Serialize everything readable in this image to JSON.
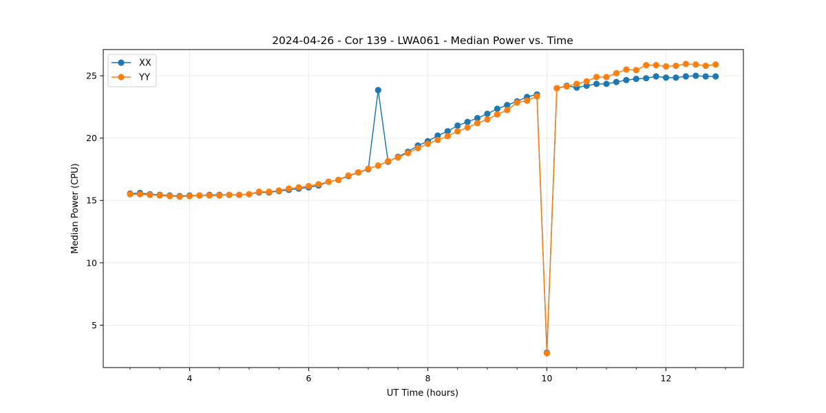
{
  "chart_data": {
    "type": "line",
    "title": "2024-04-26 - Cor 139 - LWA061 - Median Power vs. Time",
    "xlabel": "UT Time (hours)",
    "ylabel": "Median Power (CPU)",
    "xlim": [
      2.55,
      13.3
    ],
    "ylim": [
      1.6,
      27.1
    ],
    "xticks": [
      4,
      6,
      8,
      10,
      12
    ],
    "xtick_labels": [
      "4",
      "6",
      "8",
      "10",
      "12"
    ],
    "yticks": [
      5,
      10,
      15,
      20,
      25
    ],
    "ytick_labels": [
      "5",
      "10",
      "15",
      "20",
      "25"
    ],
    "grid": true,
    "legend_position": "top-left",
    "x": [
      3.0,
      3.1667,
      3.3333,
      3.5,
      3.6667,
      3.8333,
      4.0,
      4.1667,
      4.3333,
      4.5,
      4.6667,
      4.8333,
      5.0,
      5.1667,
      5.3333,
      5.5,
      5.6667,
      5.8333,
      6.0,
      6.1667,
      6.3333,
      6.5,
      6.6667,
      6.8333,
      7.0,
      7.1667,
      7.3333,
      7.5,
      7.6667,
      7.8333,
      8.0,
      8.1667,
      8.3333,
      8.5,
      8.6667,
      8.8333,
      9.0,
      9.1667,
      9.3333,
      9.5,
      9.6667,
      9.8333,
      10.0,
      10.1667,
      10.3333,
      10.5,
      10.6667,
      10.8333,
      11.0,
      11.1667,
      11.3333,
      11.5,
      11.6667,
      11.8333,
      12.0,
      12.1667,
      12.3333,
      12.5,
      12.6667,
      12.8333
    ],
    "series": [
      {
        "name": "XX",
        "color": "#1f77b4",
        "values": [
          15.55,
          15.6,
          15.5,
          15.45,
          15.4,
          15.35,
          15.4,
          15.4,
          15.45,
          15.45,
          15.45,
          15.45,
          15.5,
          15.65,
          15.65,
          15.75,
          15.85,
          15.95,
          16.05,
          16.2,
          16.5,
          16.65,
          16.95,
          17.25,
          17.5,
          23.85,
          18.1,
          18.5,
          18.9,
          19.4,
          19.75,
          20.2,
          20.55,
          21.0,
          21.3,
          21.6,
          21.95,
          22.35,
          22.65,
          22.95,
          23.3,
          23.5,
          2.8,
          24.0,
          24.2,
          24.05,
          24.2,
          24.35,
          24.35,
          24.5,
          24.65,
          24.75,
          24.8,
          24.95,
          24.85,
          24.85,
          24.95,
          25.0,
          24.95,
          24.95
        ]
      },
      {
        "name": "YY",
        "color": "#ff7f0e",
        "values": [
          15.5,
          15.5,
          15.45,
          15.4,
          15.35,
          15.3,
          15.35,
          15.4,
          15.4,
          15.4,
          15.45,
          15.45,
          15.5,
          15.7,
          15.7,
          15.8,
          15.95,
          16.05,
          16.15,
          16.3,
          16.5,
          16.65,
          17.0,
          17.25,
          17.55,
          17.8,
          18.15,
          18.45,
          18.8,
          19.2,
          19.55,
          19.85,
          20.15,
          20.55,
          20.85,
          21.2,
          21.5,
          21.9,
          22.25,
          22.85,
          23.0,
          23.35,
          2.75,
          24.0,
          24.15,
          24.35,
          24.55,
          24.9,
          24.9,
          25.2,
          25.5,
          25.45,
          25.85,
          25.85,
          25.75,
          25.8,
          25.95,
          25.9,
          25.8,
          25.9
        ]
      }
    ]
  }
}
